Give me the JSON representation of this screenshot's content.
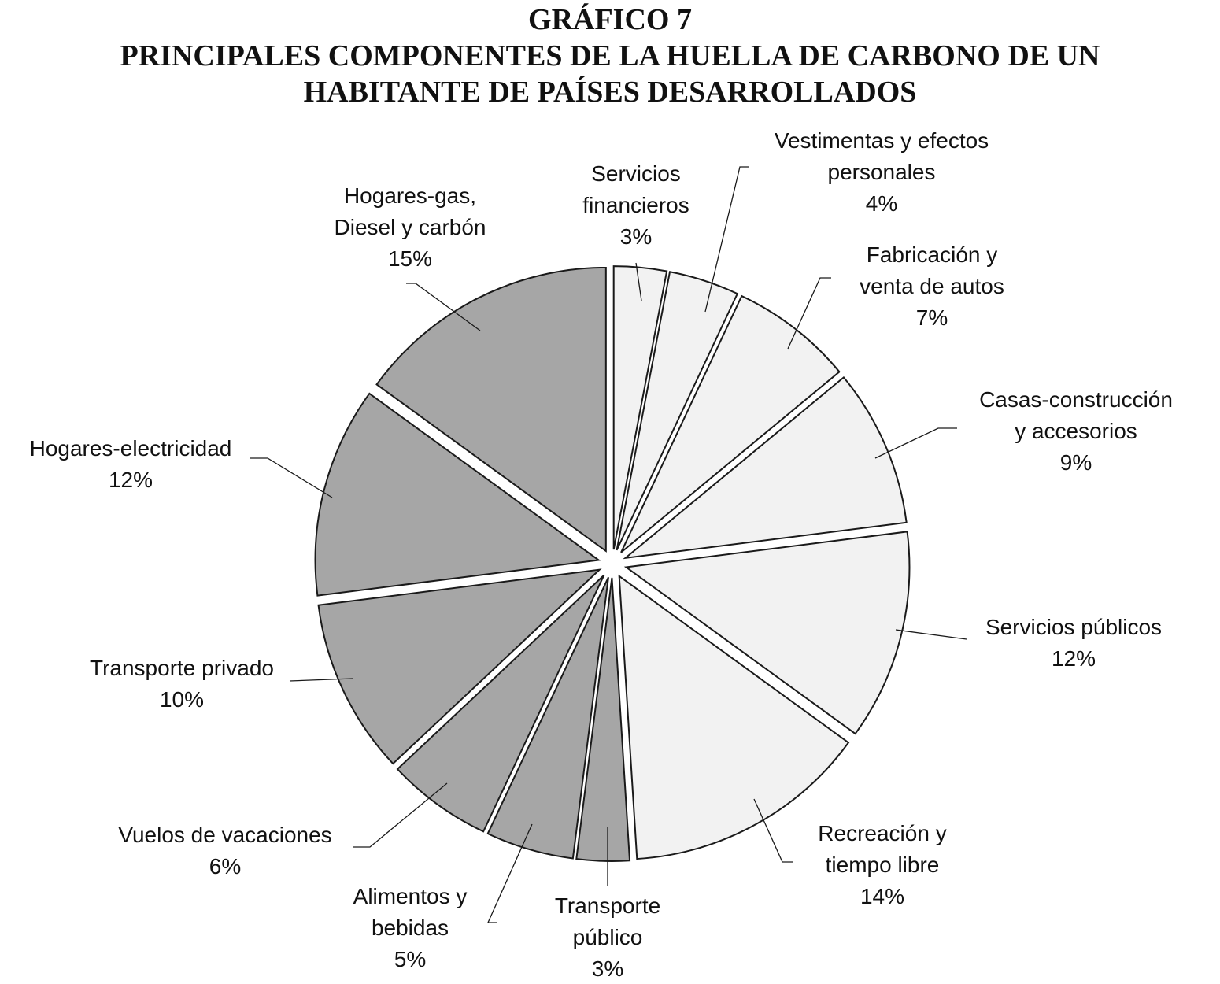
{
  "title": {
    "line1": "GRÁFICO 7",
    "line2": "PRINCIPALES COMPONENTES DE LA HUELLA DE CARBONO DE UN",
    "line3": "HABITANTE DE PAÍSES DESARROLLADOS"
  },
  "chart_data": {
    "type": "pie",
    "title": "GRÁFICO 7 PRINCIPALES COMPONENTES DE LA HUELLA DE CARBONO DE UN HABITANTE DE PAÍSES DESARROLLADOS",
    "exploded": true,
    "colors": {
      "light": "#f2f2f2",
      "dark": "#a6a6a6",
      "stroke": "#1a1a1a"
    },
    "slices": [
      {
        "label_lines": [
          "Servicios",
          "financieros",
          "3%"
        ],
        "value": 3,
        "shade": "light"
      },
      {
        "label_lines": [
          "Vestimentas y efectos",
          "personales",
          "4%"
        ],
        "value": 4,
        "shade": "light"
      },
      {
        "label_lines": [
          "Fabricación y",
          "venta de autos",
          "7%"
        ],
        "value": 7,
        "shade": "light"
      },
      {
        "label_lines": [
          "Casas-construcción",
          "y accesorios",
          "9%"
        ],
        "value": 9,
        "shade": "light"
      },
      {
        "label_lines": [
          "Servicios públicos",
          "12%"
        ],
        "value": 12,
        "shade": "light"
      },
      {
        "label_lines": [
          "Recreación y",
          "tiempo libre",
          "14%"
        ],
        "value": 14,
        "shade": "light"
      },
      {
        "label_lines": [
          "Transporte",
          "público",
          "3%"
        ],
        "value": 3,
        "shade": "dark"
      },
      {
        "label_lines": [
          "Alimentos y",
          "bebidas",
          "5%"
        ],
        "value": 5,
        "shade": "dark"
      },
      {
        "label_lines": [
          "Vuelos de vacaciones",
          "6%"
        ],
        "value": 6,
        "shade": "dark"
      },
      {
        "label_lines": [
          "Transporte privado",
          "10%"
        ],
        "value": 10,
        "shade": "dark"
      },
      {
        "label_lines": [
          "Hogares-electricidad",
          "12%"
        ],
        "value": 12,
        "shade": "dark"
      },
      {
        "label_lines": [
          "Hogares-gas,",
          "Diesel y carbón",
          "15%"
        ],
        "value": 15,
        "shade": "dark"
      }
    ]
  }
}
